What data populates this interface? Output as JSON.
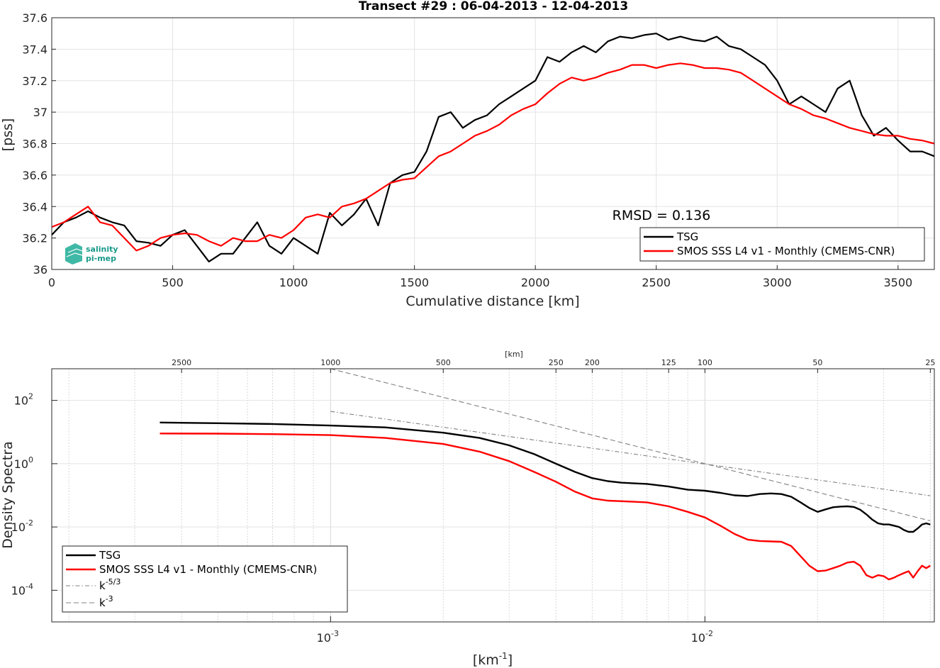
{
  "chart_data": [
    {
      "type": "line",
      "title": "Transect #29 : 06-04-2013 - 12-04-2013",
      "xlabel": "Cumulative distance [km]",
      "ylabel": "[pss]",
      "xlim": [
        0,
        3650
      ],
      "ylim": [
        36,
        37.6
      ],
      "xticks": [
        0,
        500,
        1000,
        1500,
        2000,
        2500,
        3000,
        3500
      ],
      "yticks": [
        36,
        36.2,
        36.4,
        36.6,
        36.8,
        37,
        37.2,
        37.4,
        37.6
      ],
      "grid": true,
      "legend_position": "bottom-right",
      "annotation": "RMSD = 0.136",
      "logo": "salinity pi-mep",
      "series": [
        {
          "name": "TSG",
          "color": "#000000",
          "x": [
            0,
            50,
            100,
            150,
            200,
            250,
            300,
            350,
            400,
            450,
            500,
            550,
            600,
            650,
            700,
            750,
            800,
            850,
            900,
            950,
            1000,
            1050,
            1100,
            1150,
            1200,
            1250,
            1300,
            1350,
            1400,
            1450,
            1500,
            1550,
            1600,
            1650,
            1700,
            1750,
            1800,
            1850,
            1900,
            1950,
            2000,
            2050,
            2100,
            2150,
            2200,
            2250,
            2300,
            2350,
            2400,
            2450,
            2500,
            2550,
            2600,
            2650,
            2700,
            2750,
            2800,
            2850,
            2900,
            2950,
            3000,
            3050,
            3100,
            3150,
            3200,
            3250,
            3300,
            3350,
            3400,
            3450,
            3500,
            3550,
            3600,
            3650
          ],
          "values": [
            36.22,
            36.3,
            36.33,
            36.37,
            36.33,
            36.3,
            36.28,
            36.18,
            36.17,
            36.15,
            36.22,
            36.25,
            36.15,
            36.05,
            36.1,
            36.1,
            36.2,
            36.3,
            36.15,
            36.1,
            36.2,
            36.15,
            36.1,
            36.36,
            36.28,
            36.35,
            36.45,
            36.28,
            36.55,
            36.6,
            36.62,
            36.75,
            36.97,
            37.0,
            36.9,
            36.95,
            36.98,
            37.05,
            37.1,
            37.15,
            37.2,
            37.35,
            37.32,
            37.38,
            37.42,
            37.38,
            37.45,
            37.48,
            37.47,
            37.49,
            37.5,
            37.46,
            37.48,
            37.46,
            37.45,
            37.48,
            37.42,
            37.4,
            37.35,
            37.3,
            37.2,
            37.05,
            37.1,
            37.05,
            37.0,
            37.15,
            37.2,
            36.98,
            36.85,
            36.9,
            36.82,
            36.75,
            36.75,
            36.72
          ]
        },
        {
          "name": "SMOS SSS L4 v1 - Monthly (CMEMS-CNR)",
          "color": "#ff0000",
          "x": [
            0,
            50,
            100,
            150,
            200,
            250,
            300,
            350,
            400,
            450,
            500,
            550,
            600,
            650,
            700,
            750,
            800,
            850,
            900,
            950,
            1000,
            1050,
            1100,
            1150,
            1200,
            1250,
            1300,
            1350,
            1400,
            1450,
            1500,
            1550,
            1600,
            1650,
            1700,
            1750,
            1800,
            1850,
            1900,
            1950,
            2000,
            2050,
            2100,
            2150,
            2200,
            2250,
            2300,
            2350,
            2400,
            2450,
            2500,
            2550,
            2600,
            2650,
            2700,
            2750,
            2800,
            2850,
            2900,
            2950,
            3000,
            3050,
            3100,
            3150,
            3200,
            3250,
            3300,
            3350,
            3400,
            3450,
            3500,
            3550,
            3600,
            3650
          ],
          "values": [
            36.27,
            36.3,
            36.35,
            36.4,
            36.3,
            36.28,
            36.2,
            36.12,
            36.15,
            36.2,
            36.22,
            36.23,
            36.22,
            36.18,
            36.15,
            36.2,
            36.18,
            36.18,
            36.22,
            36.2,
            36.25,
            36.33,
            36.35,
            36.33,
            36.4,
            36.42,
            36.45,
            36.5,
            36.55,
            36.57,
            36.58,
            36.65,
            36.72,
            36.75,
            36.8,
            36.85,
            36.88,
            36.92,
            36.98,
            37.02,
            37.05,
            37.12,
            37.18,
            37.22,
            37.2,
            37.22,
            37.25,
            37.27,
            37.3,
            37.3,
            37.28,
            37.3,
            37.31,
            37.3,
            37.28,
            37.28,
            37.27,
            37.25,
            37.2,
            37.15,
            37.1,
            37.05,
            37.02,
            36.98,
            36.96,
            36.93,
            36.9,
            36.88,
            36.86,
            36.85,
            36.85,
            36.83,
            36.82,
            36.8
          ]
        }
      ]
    },
    {
      "type": "line",
      "title": "",
      "xlabel": "[km",
      "xlabel_sup": "-1",
      "xlabel_end": "]",
      "ylabel": "Density Spectra",
      "xscale": "log",
      "yscale": "log",
      "xlim": [
        0.00018,
        0.041
      ],
      "ylim": [
        1e-05,
        1000
      ],
      "xticks": [
        {
          "value": 0.001,
          "base": "10",
          "exp": "-3"
        },
        {
          "value": 0.01,
          "base": "10",
          "exp": "-2"
        }
      ],
      "yticks": [
        {
          "value": 0.0001,
          "base": "10",
          "exp": "-4"
        },
        {
          "value": 0.01,
          "base": "10",
          "exp": "-2"
        },
        {
          "value": 1,
          "base": "10",
          "exp": "0"
        },
        {
          "value": 100,
          "base": "10",
          "exp": "2"
        }
      ],
      "top_axis_label": "[km]",
      "top_axis_ticks": [
        "2500",
        "1000",
        "500",
        "250",
        "200",
        "125",
        "100",
        "50",
        "25"
      ],
      "grid": true,
      "legend_position": "bottom-left",
      "series": [
        {
          "name": "TSG",
          "color": "#000000",
          "style": "solid",
          "x": [
            0.00035,
            0.0005,
            0.0007,
            0.001,
            0.0014,
            0.002,
            0.0025,
            0.003,
            0.0035,
            0.004,
            0.0045,
            0.005,
            0.0055,
            0.006,
            0.007,
            0.008,
            0.009,
            0.01,
            0.011,
            0.012,
            0.013,
            0.014,
            0.015,
            0.016,
            0.017,
            0.018,
            0.019,
            0.02,
            0.021,
            0.022,
            0.023,
            0.024,
            0.025,
            0.026,
            0.027,
            0.028,
            0.029,
            0.03,
            0.031,
            0.032,
            0.033,
            0.034,
            0.035,
            0.036,
            0.037,
            0.038,
            0.039,
            0.04
          ],
          "values": [
            20,
            19,
            18,
            16,
            14,
            9.5,
            6.5,
            3.8,
            2.0,
            1.0,
            0.55,
            0.35,
            0.28,
            0.25,
            0.23,
            0.19,
            0.15,
            0.14,
            0.12,
            0.1,
            0.095,
            0.11,
            0.115,
            0.11,
            0.09,
            0.06,
            0.04,
            0.03,
            0.036,
            0.042,
            0.044,
            0.045,
            0.043,
            0.035,
            0.025,
            0.017,
            0.013,
            0.012,
            0.012,
            0.011,
            0.01,
            0.008,
            0.007,
            0.007,
            0.009,
            0.012,
            0.013,
            0.012
          ]
        },
        {
          "name": "SMOS SSS L4 v1 - Monthly (CMEMS-CNR)",
          "color": "#ff0000",
          "style": "solid",
          "x": [
            0.00035,
            0.0005,
            0.0007,
            0.001,
            0.0014,
            0.002,
            0.0025,
            0.003,
            0.0035,
            0.004,
            0.0045,
            0.005,
            0.0055,
            0.006,
            0.007,
            0.008,
            0.009,
            0.01,
            0.011,
            0.012,
            0.013,
            0.014,
            0.015,
            0.016,
            0.017,
            0.018,
            0.019,
            0.02,
            0.021,
            0.022,
            0.023,
            0.024,
            0.025,
            0.026,
            0.027,
            0.028,
            0.029,
            0.03,
            0.031,
            0.032,
            0.033,
            0.034,
            0.035,
            0.036,
            0.037,
            0.038,
            0.039,
            0.04
          ],
          "values": [
            9,
            8.9,
            8.6,
            8,
            6.5,
            4.2,
            2.4,
            1.2,
            0.55,
            0.27,
            0.13,
            0.08,
            0.068,
            0.065,
            0.06,
            0.045,
            0.03,
            0.02,
            0.011,
            0.006,
            0.004,
            0.0036,
            0.0035,
            0.0034,
            0.0025,
            0.0012,
            0.0006,
            0.0004,
            0.00042,
            0.0005,
            0.0006,
            0.00075,
            0.0008,
            0.0006,
            0.0003,
            0.00025,
            0.0003,
            0.00028,
            0.00022,
            0.00025,
            0.0003,
            0.00035,
            0.0004,
            0.00025,
            0.0004,
            0.0006,
            0.0005,
            0.0006
          ]
        },
        {
          "name": "k",
          "name_sup": "-5/3",
          "color": "#808080",
          "style": "dashdot",
          "x": [
            0.001,
            0.04
          ],
          "values": [
            45,
            0.097
          ]
        },
        {
          "name": "k",
          "name_sup": "-3",
          "color": "#808080",
          "style": "dashed",
          "x": [
            0.001,
            0.04
          ],
          "values": [
            1000,
            0.0156
          ]
        }
      ]
    }
  ]
}
